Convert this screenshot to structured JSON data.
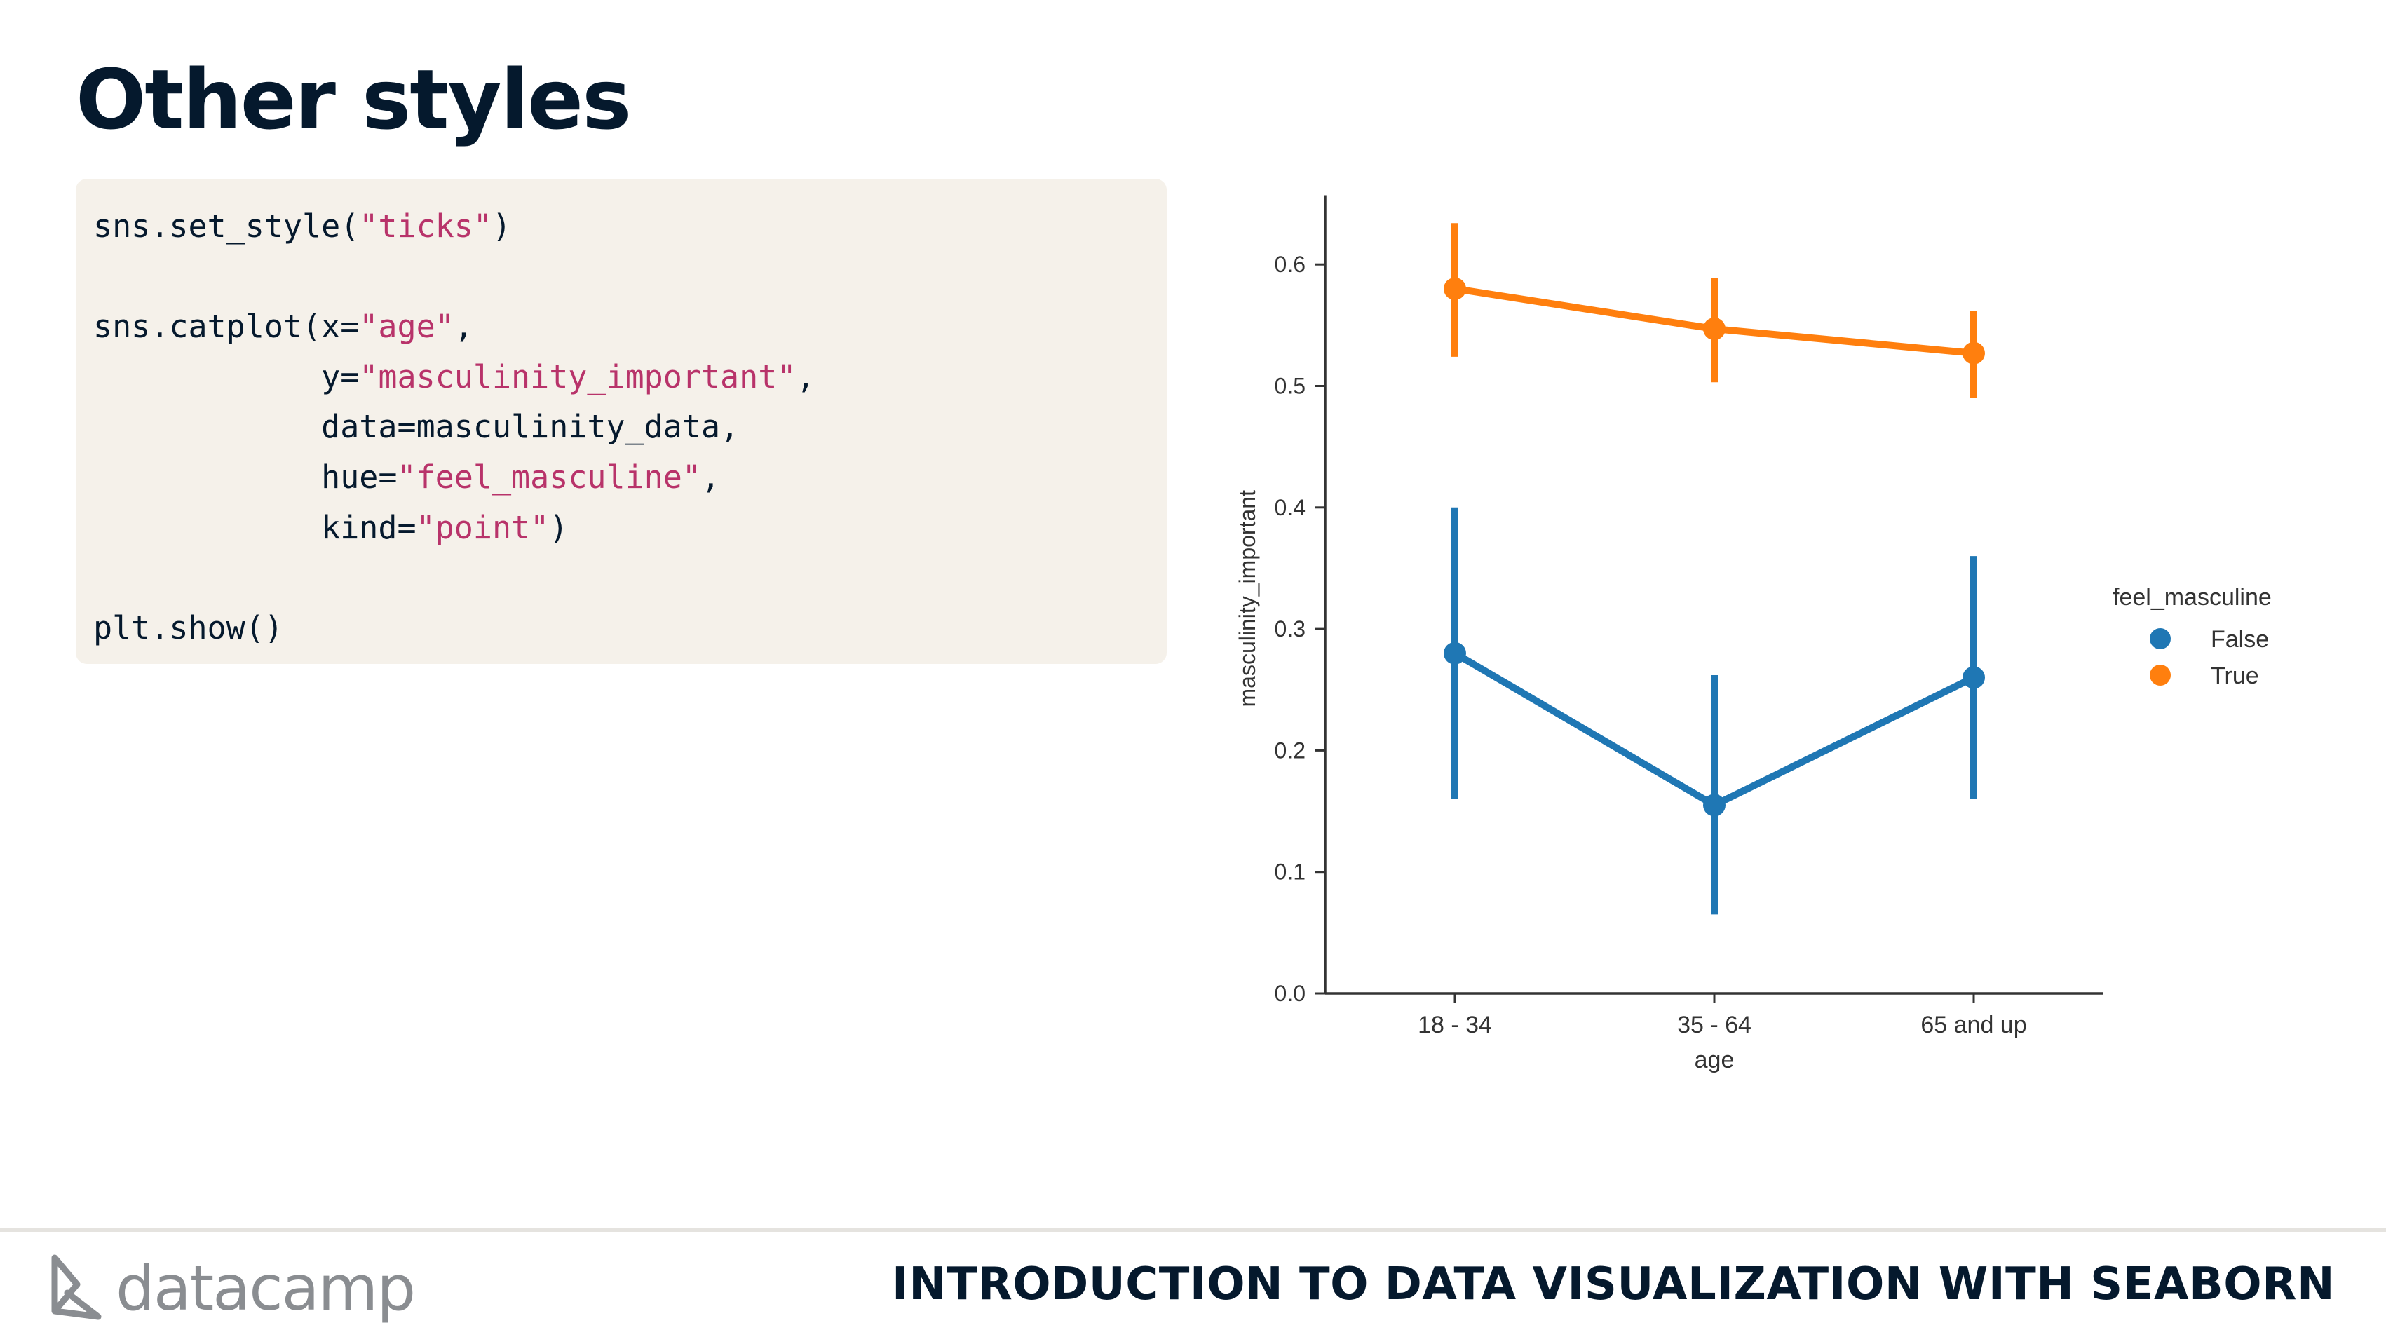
{
  "slide": {
    "title": "Other styles",
    "course_title": "INTRODUCTION TO DATA VISUALIZATION WITH SEABORN",
    "logo_text": "datacamp"
  },
  "code": [
    [
      {
        "t": "sns.set_style("
      },
      {
        "t": "\"ticks\"",
        "s": true
      },
      {
        "t": ")"
      }
    ],
    [],
    [
      {
        "t": "sns.catplot(x="
      },
      {
        "t": "\"age\"",
        "s": true
      },
      {
        "t": ","
      }
    ],
    [
      {
        "t": "            y="
      },
      {
        "t": "\"masculinity_important\"",
        "s": true
      },
      {
        "t": ","
      }
    ],
    [
      {
        "t": "            data=masculinity_data,"
      }
    ],
    [
      {
        "t": "            hue="
      },
      {
        "t": "\"feel_masculine\"",
        "s": true
      },
      {
        "t": ","
      }
    ],
    [
      {
        "t": "            kind="
      },
      {
        "t": "\"point\"",
        "s": true
      },
      {
        "t": ")"
      }
    ],
    [],
    [
      {
        "t": "plt.show()"
      }
    ]
  ],
  "chart_data": {
    "type": "line",
    "xlabel": "age",
    "ylabel": "masculinity_important",
    "categories": [
      "18 - 34",
      "35 - 64",
      "65 and up"
    ],
    "ylim": [
      0,
      0.65
    ],
    "yticks": [
      0.0,
      0.1,
      0.2,
      0.3,
      0.4,
      0.5,
      0.6
    ],
    "ytick_labels": [
      "0.0",
      "0.1",
      "0.2",
      "0.3",
      "0.4",
      "0.5",
      "0.6"
    ],
    "grid": false,
    "legend_title": "feel_masculine",
    "legend_position": "right",
    "series": [
      {
        "name": "False",
        "color": "#1f77b4",
        "values": [
          0.28,
          0.155,
          0.26
        ],
        "ci_low": [
          0.16,
          0.065,
          0.16
        ],
        "ci_high": [
          0.4,
          0.262,
          0.36
        ]
      },
      {
        "name": "True",
        "color": "#ff7f0e",
        "values": [
          0.58,
          0.547,
          0.527
        ],
        "ci_low": [
          0.524,
          0.503,
          0.49
        ],
        "ci_high": [
          0.634,
          0.589,
          0.562
        ]
      }
    ]
  }
}
